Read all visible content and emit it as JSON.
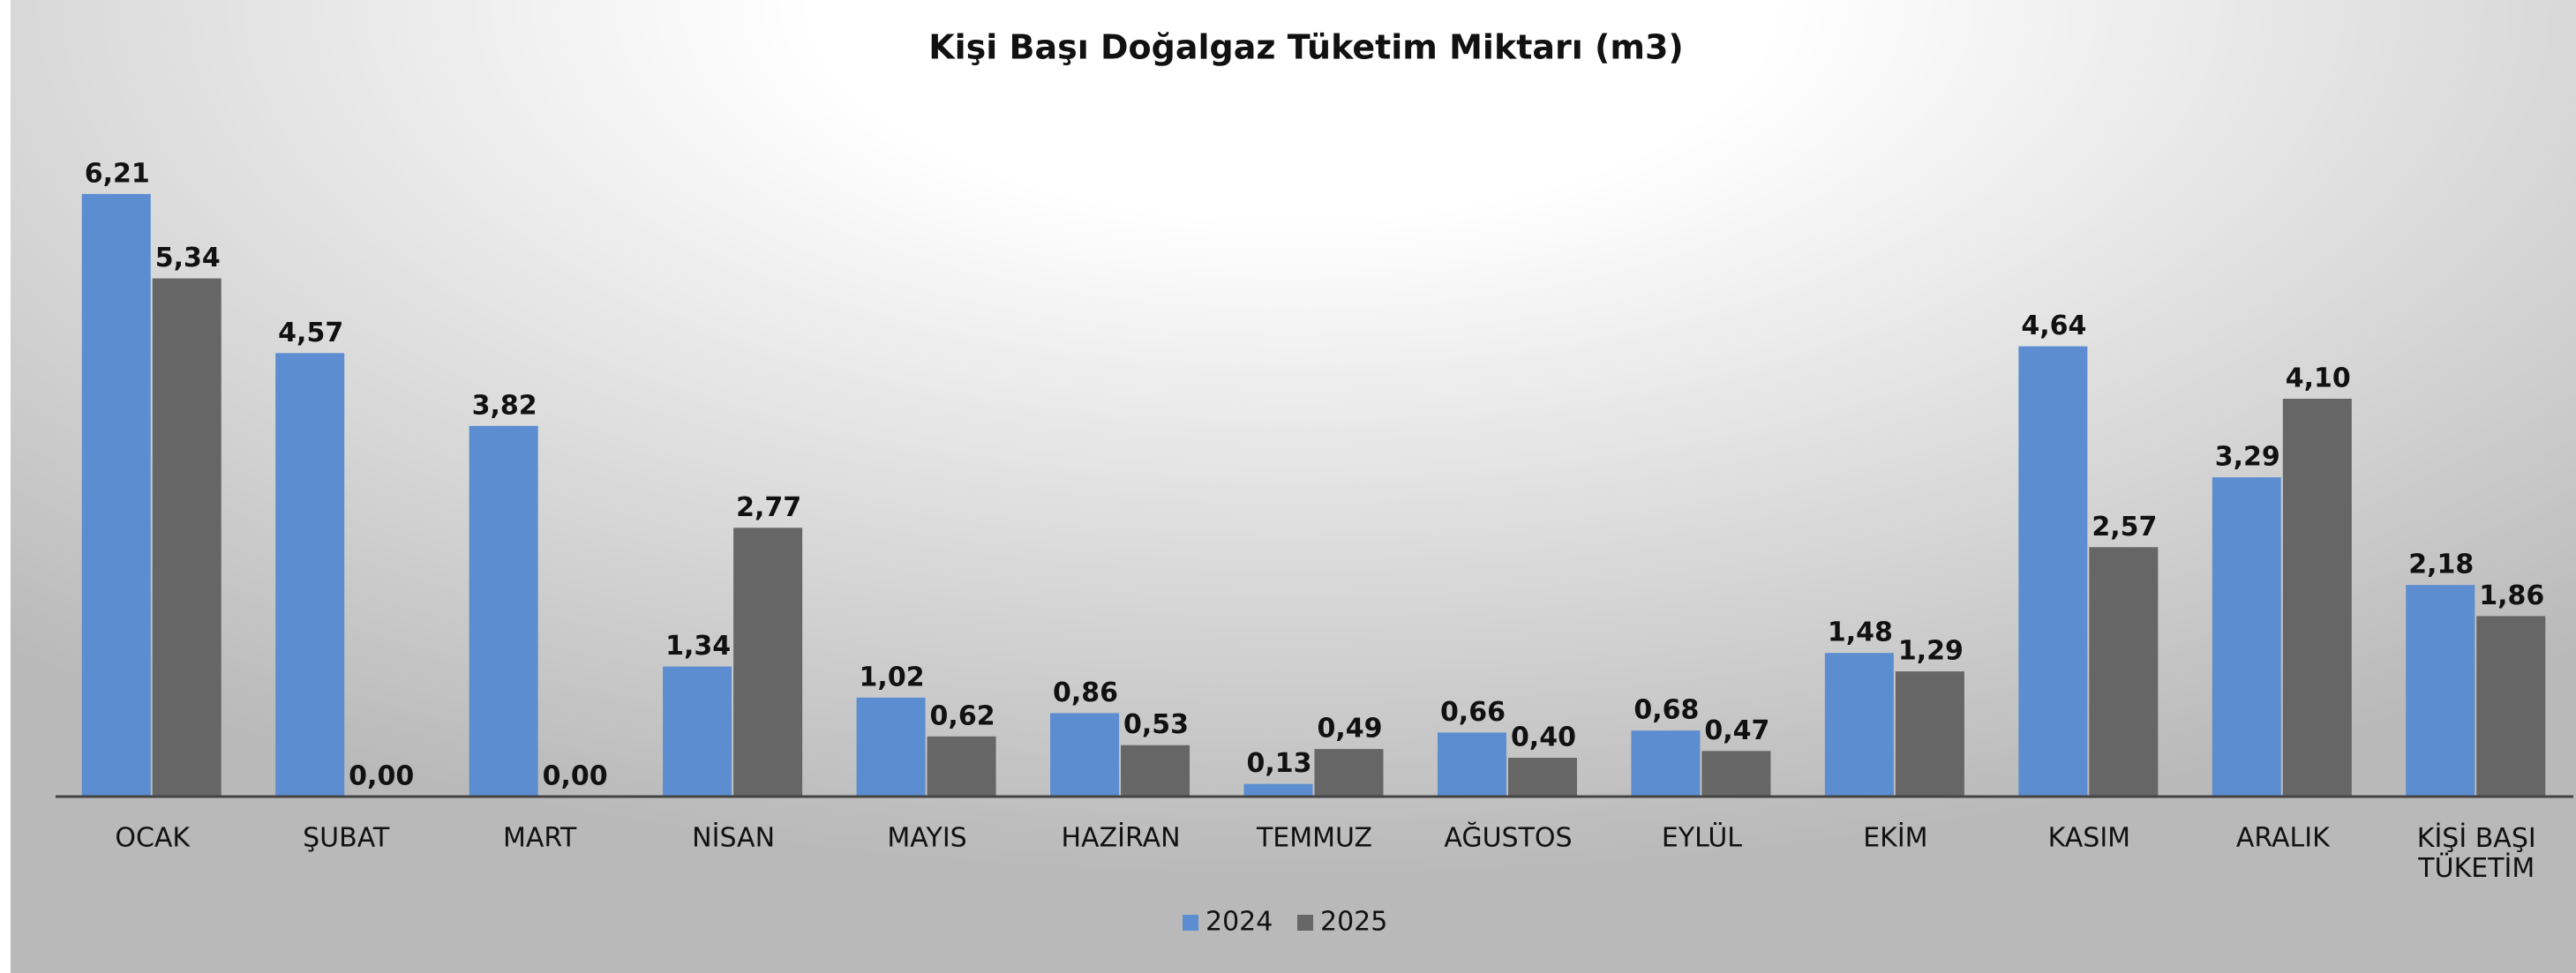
{
  "chart_data": {
    "type": "bar",
    "title": "Kişi Başı Doğalgaz Tüketim Miktarı (m3)",
    "categories": [
      "OCAK",
      "ŞUBAT",
      "MART",
      "NİSAN",
      "MAYIS",
      "HAZİRAN",
      "TEMMUZ",
      "AĞUSTOS",
      "EYLÜL",
      "EKİM",
      "KASIM",
      "ARALIK",
      "KİŞİ BAŞI TÜKETİM"
    ],
    "series": [
      {
        "name": "2024",
        "color": "#5b8dd0",
        "values": [
          6.21,
          4.57,
          3.82,
          1.34,
          1.02,
          0.86,
          0.13,
          0.66,
          0.68,
          1.48,
          4.64,
          3.29,
          2.18
        ],
        "value_labels": [
          "6,21",
          "4,57",
          "3,82",
          "1,34",
          "1,02",
          "0,86",
          "0,13",
          "0,66",
          "0,68",
          "1,48",
          "4,64",
          "3,29",
          "2,18"
        ]
      },
      {
        "name": "2025",
        "color": "#666666",
        "values": [
          5.34,
          0,
          0,
          2.77,
          0.62,
          0.53,
          0.49,
          0.4,
          0.47,
          1.29,
          2.57,
          4.1,
          1.86
        ],
        "value_labels": [
          "5,34",
          "0,00",
          "0,00",
          "2,77",
          "0,62",
          "0,53",
          "0,49",
          "0,40",
          "0,47",
          "1,29",
          "2,57",
          "4,10",
          "1,86"
        ]
      }
    ],
    "ylim": [
      0,
      7
    ],
    "legend": "bottom"
  }
}
